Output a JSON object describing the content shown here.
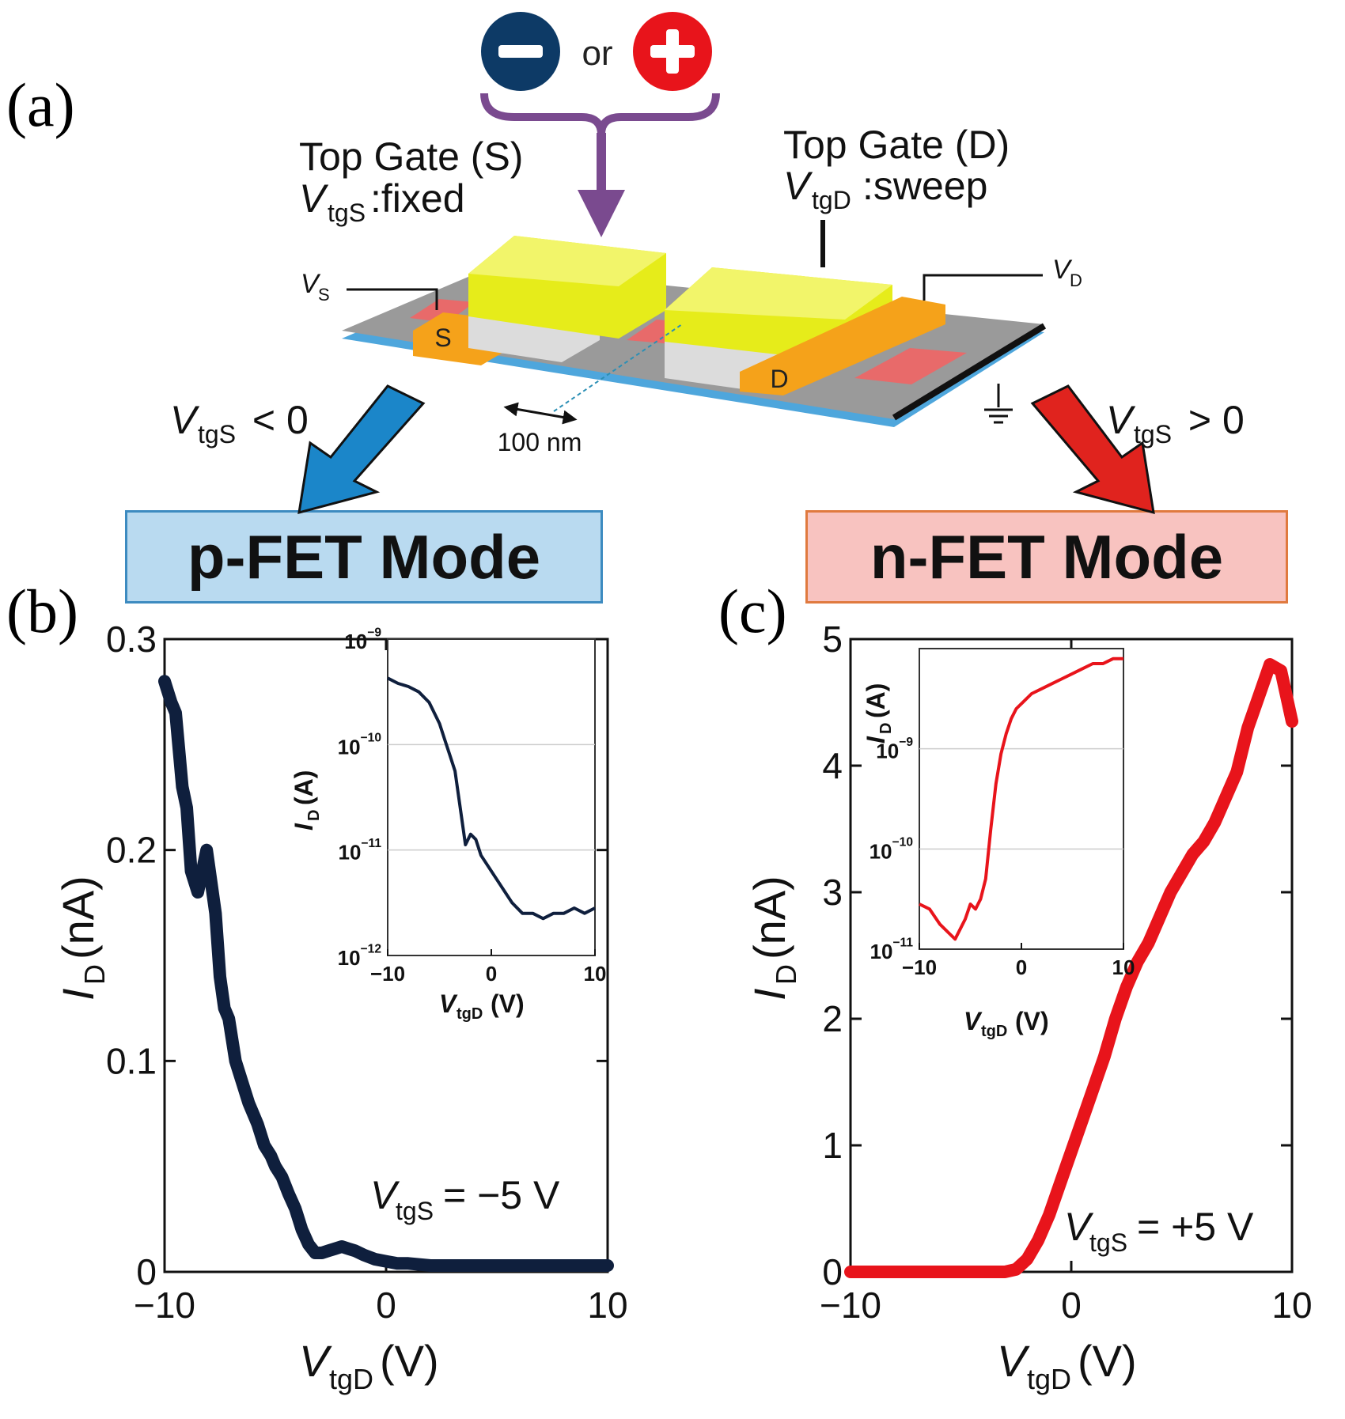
{
  "panel_labels": {
    "a": "(a)",
    "b": "(b)",
    "c": "(c)"
  },
  "diagram": {
    "polarity_minus": "−",
    "polarity_or": "or",
    "polarity_plus": "+",
    "top_gate_s_title": "Top Gate (S)",
    "top_gate_s_var": "V",
    "top_gate_s_sub": "tgS",
    "top_gate_s_mode": ":fixed",
    "top_gate_d_title": "Top Gate (D)",
    "top_gate_d_var": "V",
    "top_gate_d_sub": "tgD",
    "top_gate_d_mode": ":sweep",
    "vs_var": "V",
    "vs_sub": "S",
    "vd_var": "V",
    "vd_sub": "D",
    "source_label": "S",
    "drain_label": "D",
    "scale_label": "100 nm",
    "left_cond_var": "V",
    "left_cond_sub": "tgS",
    "left_cond_rel": " < 0",
    "right_cond_var": "V",
    "right_cond_sub": "tgS",
    "right_cond_rel": " > 0",
    "colors": {
      "negative": "#0d3a66",
      "positive": "#e8141b",
      "gate": "#e6ec1a",
      "contact": "#f5a21a",
      "channel": "#9a9a9a",
      "substrate": "#4ea6dc",
      "arrow_blue": "#1b86c9",
      "arrow_red": "#e0231e",
      "purple": "#7a4a8f"
    }
  },
  "modes": {
    "p_fet": {
      "label": "p-FET Mode",
      "fill": "#b9daf0",
      "border": "#3d8bc0"
    },
    "n_fet": {
      "label": "n-FET Mode",
      "fill": "#f8c3c0",
      "border": "#e07a3f"
    }
  },
  "chart_data": [
    {
      "id": "b",
      "type": "line",
      "title": "",
      "xlabel": "V_tgD (V)",
      "ylabel": "I_D (nA)",
      "xlim": [
        -10,
        10
      ],
      "ylim": [
        0,
        0.3
      ],
      "xticks": [
        "−10",
        "0",
        "10"
      ],
      "yticks": [
        "0",
        "0.1",
        "0.2",
        "0.3"
      ],
      "annotation": "V_tgS = −5 V",
      "color": "#0f1f3d",
      "series": [
        {
          "name": "I_D",
          "x": [
            -10,
            -9.7,
            -9.5,
            -9.2,
            -9,
            -8.8,
            -8.5,
            -8.3,
            -8.1,
            -7.9,
            -7.7,
            -7.5,
            -7.3,
            -7.1,
            -6.8,
            -6.5,
            -6.2,
            -5.8,
            -5.5,
            -5.2,
            -5,
            -4.7,
            -4.4,
            -4.1,
            -3.8,
            -3.5,
            -3.2,
            -2.9,
            -2.6,
            -2.3,
            -2,
            -1.7,
            -1.4,
            -1,
            -0.5,
            0,
            0.5,
            1,
            2,
            3,
            4,
            5,
            6,
            7,
            8,
            9,
            10
          ],
          "values": [
            0.28,
            0.27,
            0.265,
            0.23,
            0.22,
            0.19,
            0.18,
            0.19,
            0.2,
            0.185,
            0.17,
            0.14,
            0.125,
            0.12,
            0.1,
            0.09,
            0.08,
            0.07,
            0.06,
            0.055,
            0.05,
            0.045,
            0.037,
            0.03,
            0.02,
            0.013,
            0.009,
            0.009,
            0.01,
            0.011,
            0.012,
            0.011,
            0.01,
            0.008,
            0.006,
            0.005,
            0.004,
            0.004,
            0.003,
            0.003,
            0.003,
            0.003,
            0.003,
            0.003,
            0.003,
            0.003,
            0.003
          ]
        }
      ],
      "inset": {
        "xlabel": "V_tgD (V)",
        "ylabel": "I_D (A)",
        "xlim": [
          -10,
          10
        ],
        "ylim_log": [
          -12,
          -9
        ],
        "xticks": [
          "−10",
          "0",
          "10"
        ],
        "yticks": [
          "10^-12",
          "10^-11",
          "10^-10",
          "10^-9"
        ],
        "x": [
          -10,
          -9,
          -8,
          -7,
          -6,
          -5,
          -4.5,
          -4,
          -3.5,
          -3,
          -2.5,
          -2,
          -1.5,
          -1,
          0,
          1,
          2,
          3,
          4,
          5,
          6,
          7,
          8,
          9,
          10
        ],
        "log_values": [
          -9.37,
          -9.42,
          -9.45,
          -9.5,
          -9.6,
          -9.8,
          -9.95,
          -10.1,
          -10.25,
          -10.6,
          -10.95,
          -10.85,
          -10.9,
          -11.05,
          -11.2,
          -11.35,
          -11.5,
          -11.6,
          -11.6,
          -11.65,
          -11.6,
          -11.6,
          -11.55,
          -11.6,
          -11.55
        ]
      }
    },
    {
      "id": "c",
      "type": "line",
      "title": "",
      "xlabel": "V_tgD (V)",
      "ylabel": "I_D (nA)",
      "xlim": [
        -10,
        10
      ],
      "ylim": [
        0,
        5
      ],
      "xticks": [
        "−10",
        "0",
        "10"
      ],
      "yticks": [
        "0",
        "1",
        "2",
        "3",
        "4",
        "5"
      ],
      "annotation": "V_tgS = +5 V",
      "color": "#e8141b",
      "series": [
        {
          "name": "I_D",
          "x": [
            -10,
            -8,
            -6,
            -4,
            -3,
            -2.5,
            -2,
            -1.5,
            -1,
            -0.5,
            0,
            0.5,
            1,
            1.5,
            2,
            2.5,
            3,
            3.5,
            4,
            4.5,
            5,
            5.5,
            6,
            6.5,
            7,
            7.5,
            8,
            8.5,
            9,
            9.5,
            10
          ],
          "values": [
            0,
            0,
            0,
            0,
            0,
            0.02,
            0.1,
            0.25,
            0.45,
            0.7,
            0.95,
            1.2,
            1.45,
            1.7,
            2.0,
            2.25,
            2.45,
            2.6,
            2.8,
            3.0,
            3.15,
            3.3,
            3.4,
            3.55,
            3.75,
            3.95,
            4.3,
            4.55,
            4.8,
            4.75,
            4.35
          ]
        }
      ],
      "inset": {
        "xlabel": "V_tgD (V)",
        "ylabel": "I_D (A)",
        "xlim": [
          -10,
          10
        ],
        "ylim_log": [
          -11,
          -8
        ],
        "xticks": [
          "−10",
          "0",
          "10"
        ],
        "yticks": [
          "10^-11",
          "10^-10",
          "10^-9"
        ],
        "x": [
          -10,
          -9,
          -8,
          -7,
          -6.5,
          -6,
          -5.5,
          -5,
          -4.5,
          -4,
          -3.5,
          -3,
          -2.5,
          -2,
          -1.5,
          -1,
          -0.5,
          0,
          1,
          2,
          3,
          4,
          5,
          6,
          7,
          8,
          9,
          10
        ],
        "log_values": [
          -10.55,
          -10.6,
          -10.75,
          -10.85,
          -10.9,
          -10.8,
          -10.7,
          -10.55,
          -10.6,
          -10.5,
          -10.3,
          -9.8,
          -9.35,
          -9.05,
          -8.85,
          -8.7,
          -8.6,
          -8.55,
          -8.45,
          -8.4,
          -8.35,
          -8.3,
          -8.25,
          -8.2,
          -8.15,
          -8.15,
          -8.1,
          -8.1
        ]
      }
    }
  ]
}
